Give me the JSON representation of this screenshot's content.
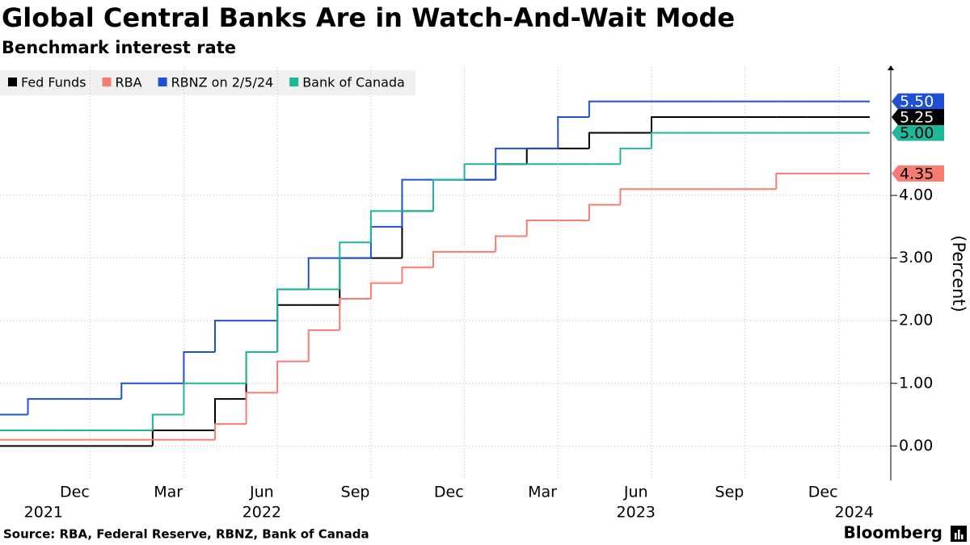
{
  "chart_data": {
    "type": "line",
    "step": true,
    "title": "Global Central Banks Are in Watch-And-Wait Mode",
    "subtitle": "Benchmark interest rate",
    "y_axis_label": "(Percent)",
    "source": "Source: RBA, Federal Reserve, RBNZ, Bank of Canada",
    "brand": "Bloomberg",
    "x": [
      "2021-10",
      "2021-11",
      "2021-12",
      "2022-01",
      "2022-02",
      "2022-03",
      "2022-04",
      "2022-05",
      "2022-06",
      "2022-07",
      "2022-08",
      "2022-09",
      "2022-10",
      "2022-11",
      "2022-12",
      "2023-01",
      "2023-02",
      "2023-03",
      "2023-04",
      "2023-05",
      "2023-06",
      "2023-07",
      "2023-08",
      "2023-09",
      "2023-10",
      "2023-11",
      "2023-12",
      "2024-01"
    ],
    "xlim": [
      "2021-10",
      "2024-02"
    ],
    "xticks": [
      {
        "value": "2021-12",
        "label": "Dec"
      },
      {
        "value": "2022-03",
        "label": "Mar"
      },
      {
        "value": "2022-06",
        "label": "Jun"
      },
      {
        "value": "2022-09",
        "label": "Sep"
      },
      {
        "value": "2022-12",
        "label": "Dec"
      },
      {
        "value": "2023-03",
        "label": "Mar"
      },
      {
        "value": "2023-06",
        "label": "Jun"
      },
      {
        "value": "2023-09",
        "label": "Sep"
      },
      {
        "value": "2023-12",
        "label": "Dec"
      }
    ],
    "xyears": [
      {
        "value": "2021-11",
        "label": "2021"
      },
      {
        "value": "2022-06",
        "label": "2022"
      },
      {
        "value": "2023-06",
        "label": "2023"
      },
      {
        "value": "2024-01",
        "label": "2024"
      }
    ],
    "ylim": [
      -0.55,
      6.05
    ],
    "yticks": [
      {
        "value": 0,
        "label": "0.00"
      },
      {
        "value": 1,
        "label": "1.00"
      },
      {
        "value": 2,
        "label": "2.00"
      },
      {
        "value": 3,
        "label": "3.00"
      },
      {
        "value": 4,
        "label": "4.00"
      }
    ],
    "grid": true,
    "legend": "top-left",
    "series": [
      {
        "name": "Fed Funds",
        "color": "#000000",
        "values": [
          0,
          0,
          0,
          0,
          0,
          0.25,
          0.25,
          0.75,
          1.5,
          2.25,
          2.25,
          3.0,
          3.0,
          3.75,
          4.25,
          4.25,
          4.5,
          4.75,
          4.75,
          5.0,
          5.0,
          5.25,
          5.25,
          5.25,
          5.25,
          5.25,
          5.25,
          5.25
        ],
        "value_labels": [
          null,
          null,
          null,
          null,
          null,
          null,
          null,
          null,
          null,
          null,
          null,
          null,
          null,
          null,
          null,
          null,
          null,
          null,
          null,
          null,
          null,
          null,
          null,
          null,
          null,
          null,
          null,
          "5.25"
        ]
      },
      {
        "name": "RBA",
        "color": "#f87c72",
        "values": [
          0.1,
          0.1,
          0.1,
          0.1,
          0.1,
          0.1,
          0.1,
          0.35,
          0.85,
          1.35,
          1.85,
          2.35,
          2.6,
          2.85,
          3.1,
          3.1,
          3.35,
          3.6,
          3.6,
          3.85,
          4.1,
          4.1,
          4.1,
          4.1,
          4.1,
          4.35,
          4.35,
          4.35
        ],
        "value_labels": [
          null,
          null,
          null,
          null,
          null,
          null,
          null,
          null,
          null,
          null,
          null,
          null,
          null,
          null,
          null,
          null,
          null,
          null,
          null,
          null,
          null,
          null,
          null,
          null,
          null,
          null,
          null,
          "4.35"
        ]
      },
      {
        "name": "RBNZ on 2/5/24",
        "color": "#1f4fd3",
        "values": [
          0.5,
          0.75,
          0.75,
          0.75,
          1.0,
          1.0,
          1.5,
          2.0,
          2.0,
          2.5,
          3.0,
          3.0,
          3.5,
          4.25,
          4.25,
          4.25,
          4.75,
          4.75,
          5.25,
          5.5,
          5.5,
          5.5,
          5.5,
          5.5,
          5.5,
          5.5,
          5.5,
          5.5
        ],
        "value_labels": [
          null,
          null,
          null,
          null,
          null,
          null,
          null,
          null,
          null,
          null,
          null,
          null,
          null,
          null,
          null,
          null,
          null,
          null,
          null,
          null,
          null,
          null,
          null,
          null,
          null,
          null,
          null,
          "5.50"
        ]
      },
      {
        "name": "Bank of Canada",
        "color": "#1fb79a",
        "values": [
          0.25,
          0.25,
          0.25,
          0.25,
          0.25,
          0.5,
          1.0,
          1.0,
          1.5,
          2.5,
          2.5,
          3.25,
          3.75,
          3.75,
          4.25,
          4.5,
          4.5,
          4.5,
          4.5,
          4.5,
          4.75,
          5.0,
          5.0,
          5.0,
          5.0,
          5.0,
          5.0,
          5.0
        ],
        "value_labels": [
          null,
          null,
          null,
          null,
          null,
          null,
          null,
          null,
          null,
          null,
          null,
          null,
          null,
          null,
          null,
          null,
          null,
          null,
          null,
          null,
          null,
          null,
          null,
          null,
          null,
          null,
          null,
          "5.00"
        ]
      }
    ]
  }
}
